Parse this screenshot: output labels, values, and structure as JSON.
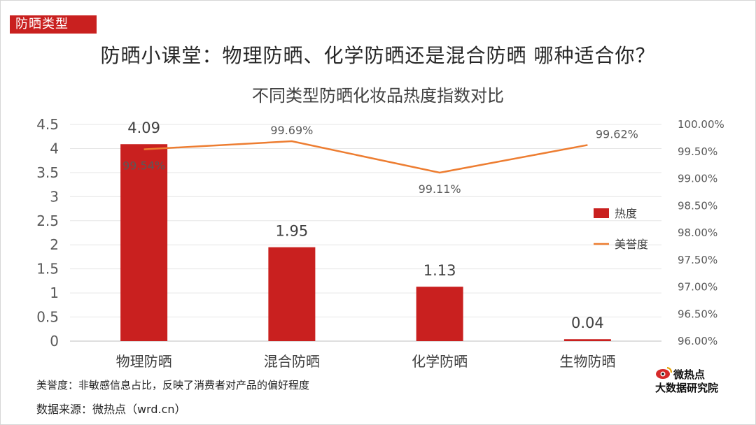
{
  "header": {
    "tag": "防晒类型",
    "title": "防晒小课堂：物理防晒、化学防晒还是混合防晒  哪种适合你？"
  },
  "chart_data": {
    "type": "bar",
    "title": "不同类型防晒化妆品热度指数对比",
    "categories": [
      "物理防晒",
      "混合防晒",
      "化学防晒",
      "生物防晒"
    ],
    "series": [
      {
        "name": "热度",
        "type": "bar",
        "axis": "left",
        "values": [
          4.09,
          1.95,
          1.13,
          0.04
        ],
        "labels": [
          "4.09",
          "1.95",
          "1.13",
          "0.04"
        ],
        "color": "#c9201f"
      },
      {
        "name": "美誉度",
        "type": "line",
        "axis": "right",
        "values": [
          99.54,
          99.69,
          99.11,
          99.62
        ],
        "labels": [
          "99.54%",
          "99.69%",
          "99.11%",
          "99.62%"
        ],
        "color": "#ed7d31"
      }
    ],
    "y_left": {
      "range": [
        0,
        4.5
      ],
      "ticks": [
        "0",
        "0.5",
        "1",
        "1.5",
        "2",
        "2.5",
        "3",
        "3.5",
        "4",
        "4.5"
      ]
    },
    "y_right": {
      "range": [
        96,
        100
      ],
      "ticks": [
        "96.00%",
        "96.50%",
        "97.00%",
        "97.50%",
        "98.00%",
        "98.50%",
        "99.00%",
        "99.50%",
        "100.00%"
      ]
    },
    "grid": true,
    "legend_position": "right"
  },
  "notes": {
    "definition": "美誉度：非敏感信息占比，反映了消费者对产品的偏好程度",
    "source": "数据来源：微热点（wrd.cn）"
  },
  "logo": {
    "line1": "微热点",
    "line2": "大数据研究院"
  }
}
